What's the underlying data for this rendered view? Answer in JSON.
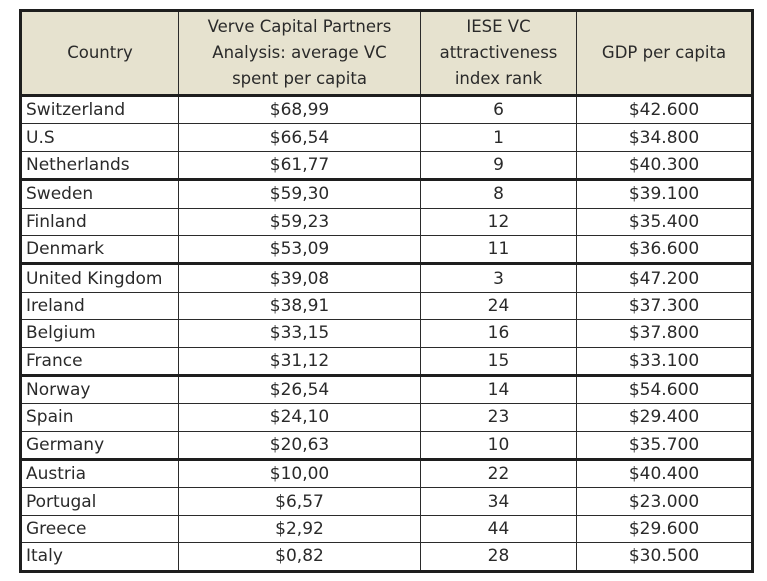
{
  "table": {
    "headers": [
      [
        "Country"
      ],
      [
        "Verve Capital Partners",
        "Analysis: average VC",
        "spent per capita"
      ],
      [
        "IESE VC",
        "attractiveness",
        "index rank"
      ],
      [
        "GDP per capita"
      ]
    ],
    "rows": [
      [
        "Switzerland",
        "$68,99",
        "6",
        "$42.600"
      ],
      [
        "U.S",
        "$66,54",
        "1",
        "$34.800"
      ],
      [
        "Netherlands",
        "$61,77",
        "9",
        "$40.300"
      ],
      [
        "Sweden",
        "$59,30",
        "8",
        "$39.100"
      ],
      [
        "Finland",
        "$59,23",
        "12",
        "$35.400"
      ],
      [
        "Denmark",
        "$53,09",
        "11",
        "$36.600"
      ],
      [
        "United Kingdom",
        "$39,08",
        "3",
        "$47.200"
      ],
      [
        "Ireland",
        "$38,91",
        "24",
        "$37.300"
      ],
      [
        "Belgium",
        "$33,15",
        "16",
        "$37.800"
      ],
      [
        "France",
        "$31,12",
        "15",
        "$33.100"
      ],
      [
        "Norway",
        "$26,54",
        "14",
        "$54.600"
      ],
      [
        "Spain",
        "$24,10",
        "23",
        "$29.400"
      ],
      [
        "Germany",
        "$20,63",
        "10",
        "$35.700"
      ],
      [
        "Austria",
        "$10,00",
        "22",
        "$40.400"
      ],
      [
        "Portugal",
        "$6,57",
        "34",
        "$23.000"
      ],
      [
        "Greece",
        "$2,92",
        "44",
        "$29.600"
      ],
      [
        "Italy",
        "$0,82",
        "28",
        "$30.500"
      ]
    ]
  }
}
